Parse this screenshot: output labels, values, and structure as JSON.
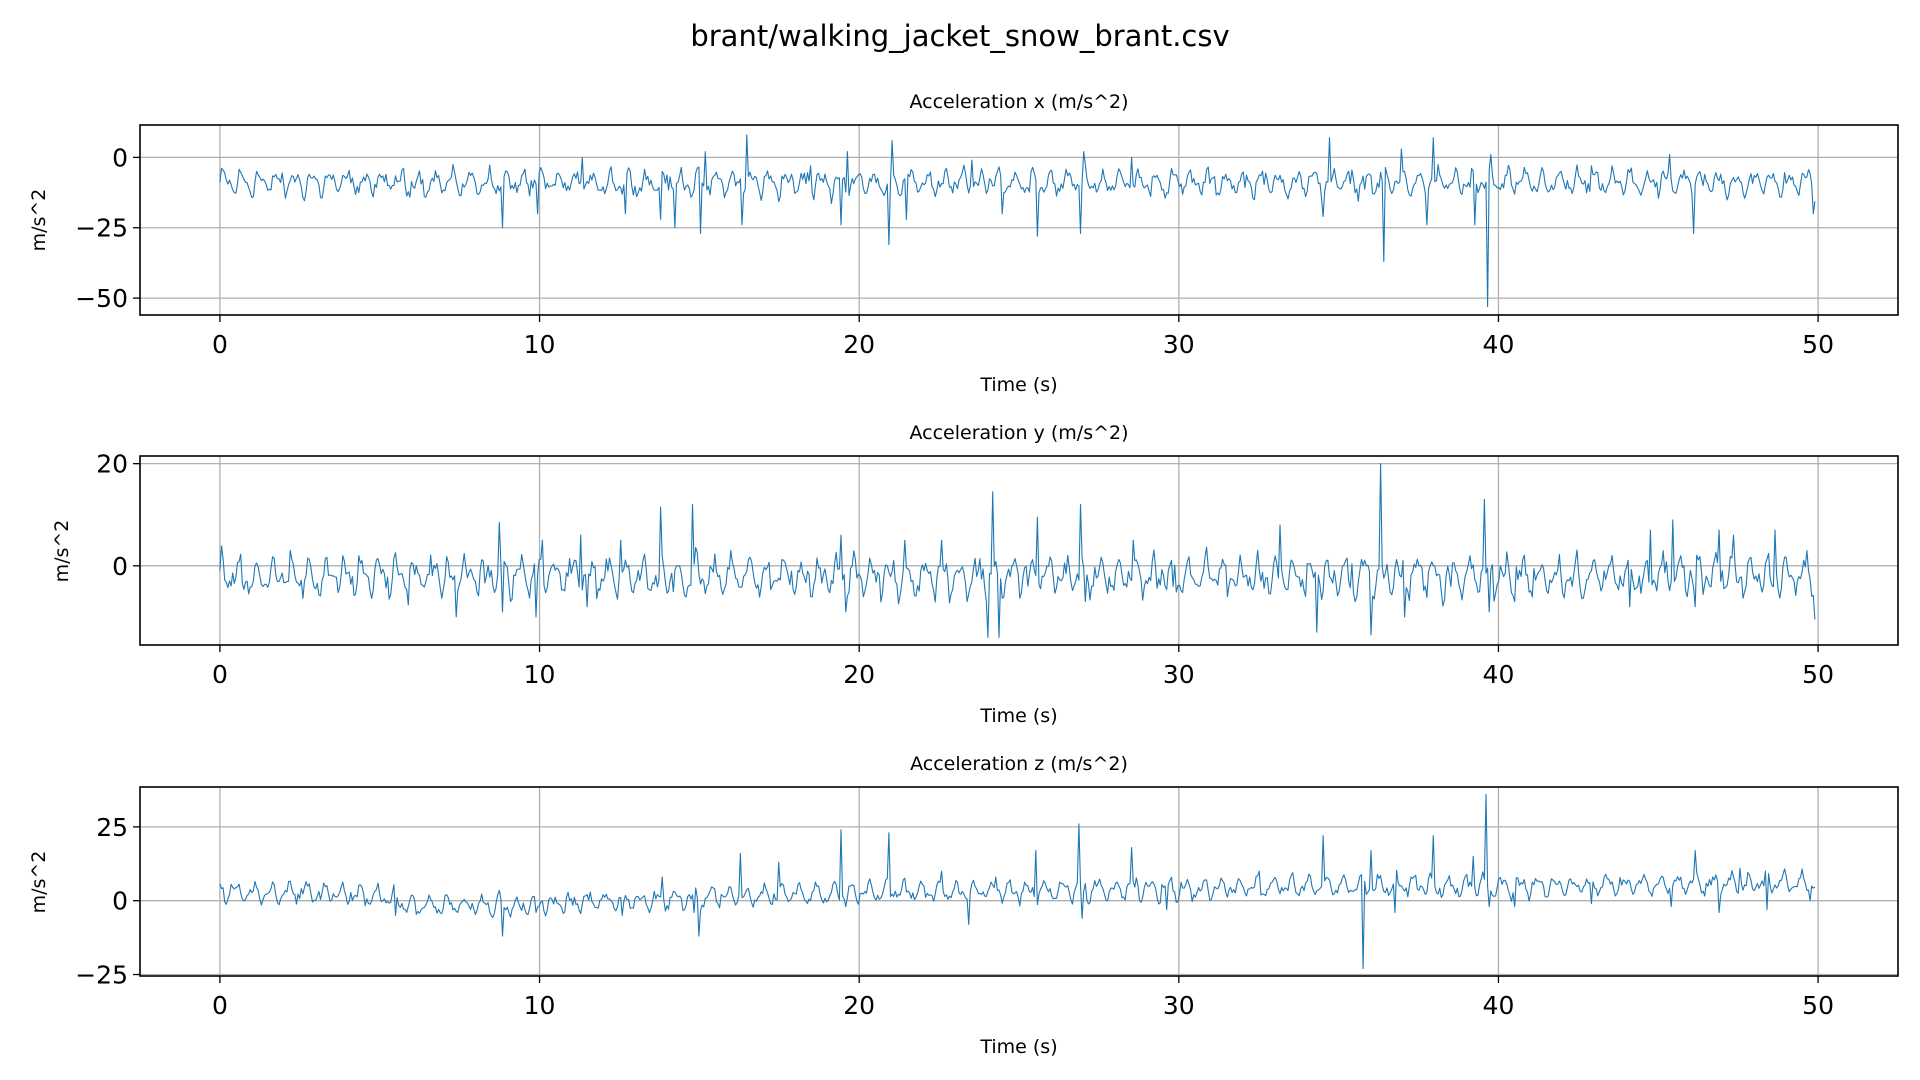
{
  "figure": {
    "suptitle": "brant/walking_jacket_snow_brant.csv"
  },
  "colors": {
    "line": "#1f77b4",
    "grid": "#b0b0b0",
    "axes": "#000000",
    "background": "#ffffff"
  },
  "chart_data": [
    {
      "type": "line",
      "title": "Acceleration x (m/s^2)",
      "xlabel": "Time (s)",
      "ylabel": "m/s^2",
      "xlim": [
        -2.5,
        52.5
      ],
      "ylim": [
        -56,
        11.5
      ],
      "xticks": [
        0,
        10,
        20,
        30,
        40,
        50
      ],
      "xtick_labels": [
        "0",
        "10",
        "20",
        "30",
        "40",
        "50"
      ],
      "yticks": [
        0,
        -25,
        -50
      ],
      "ytick_labels": [
        "0",
        "−25",
        "−50"
      ],
      "grid": true,
      "series": [
        {
          "x_range": [
            0,
            49.9
          ],
          "samples": 1000,
          "baseline": -9,
          "wave_amplitude": 3,
          "noise": 2.5,
          "spikes": [
            [
              8.85,
              -25
            ],
            [
              9.95,
              -20
            ],
            [
              11.35,
              0
            ],
            [
              12.7,
              -20
            ],
            [
              13.8,
              -22
            ],
            [
              14.25,
              -25
            ],
            [
              15.05,
              -27
            ],
            [
              15.2,
              2
            ],
            [
              16.35,
              -24
            ],
            [
              16.5,
              8
            ],
            [
              18.5,
              -3
            ],
            [
              19.45,
              -24
            ],
            [
              19.65,
              2
            ],
            [
              20.95,
              -31
            ],
            [
              21.05,
              6
            ],
            [
              21.5,
              -22
            ],
            [
              23.55,
              -1
            ],
            [
              24.5,
              -20
            ],
            [
              25.55,
              -28
            ],
            [
              26.9,
              -27
            ],
            [
              27,
              2
            ],
            [
              28.5,
              0
            ],
            [
              33.7,
              -7
            ],
            [
              34.5,
              -21
            ],
            [
              34.7,
              7
            ],
            [
              36.4,
              -37
            ],
            [
              36.95,
              3
            ],
            [
              37.75,
              -24
            ],
            [
              37.95,
              7
            ],
            [
              39.25,
              -24
            ],
            [
              39.65,
              -53
            ],
            [
              39.75,
              1
            ],
            [
              42.9,
              -3
            ],
            [
              45.35,
              1
            ],
            [
              46.1,
              -27
            ],
            [
              49.85,
              -20
            ]
          ]
        }
      ]
    },
    {
      "type": "line",
      "title": "Acceleration y (m/s^2)",
      "xlabel": "Time (s)",
      "ylabel": "m/s^2",
      "xlim": [
        -2.5,
        52.5
      ],
      "ylim": [
        -15.5,
        21.5
      ],
      "xticks": [
        0,
        10,
        20,
        30,
        40,
        50
      ],
      "xtick_labels": [
        "0",
        "10",
        "20",
        "30",
        "40",
        "50"
      ],
      "yticks": [
        20,
        0
      ],
      "ytick_labels": [
        "20",
        "0"
      ],
      "grid": true,
      "series": [
        {
          "x_range": [
            0,
            49.9
          ],
          "samples": 1000,
          "baseline": -2,
          "wave_amplitude": 2.5,
          "noise": 2.2,
          "spikes": [
            [
              7.4,
              -10
            ],
            [
              8.75,
              8.5
            ],
            [
              8.85,
              -9
            ],
            [
              9.9,
              -10
            ],
            [
              10.1,
              5
            ],
            [
              11.3,
              6
            ],
            [
              11.5,
              -8
            ],
            [
              12.55,
              5
            ],
            [
              13.8,
              11.5
            ],
            [
              14.8,
              12
            ],
            [
              18.5,
              -6
            ],
            [
              19.45,
              6
            ],
            [
              19.6,
              -9
            ],
            [
              21.45,
              5
            ],
            [
              22.6,
              5
            ],
            [
              23.4,
              -7
            ],
            [
              24.05,
              -14
            ],
            [
              24.2,
              14.5
            ],
            [
              24.4,
              -14
            ],
            [
              25.55,
              9.5
            ],
            [
              26.9,
              12
            ],
            [
              27.05,
              -7
            ],
            [
              28.55,
              5
            ],
            [
              29.8,
              -4
            ],
            [
              31.5,
              -6
            ],
            [
              33.15,
              8
            ],
            [
              34.3,
              -13
            ],
            [
              35.5,
              -7
            ],
            [
              36,
              -13.5
            ],
            [
              36.3,
              20
            ],
            [
              37.05,
              -10
            ],
            [
              38.5,
              -4
            ],
            [
              39.55,
              13
            ],
            [
              39.7,
              -9
            ],
            [
              40.5,
              -7
            ],
            [
              44.1,
              -8
            ],
            [
              44.75,
              7
            ],
            [
              45.45,
              9
            ],
            [
              46.15,
              -8
            ],
            [
              46.9,
              7
            ],
            [
              47.35,
              6
            ],
            [
              48.65,
              7
            ],
            [
              49.65,
              3
            ],
            [
              49.9,
              -10.5
            ]
          ]
        }
      ]
    },
    {
      "type": "line",
      "title": "Acceleration z (m/s^2)",
      "xlabel": "Time (s)",
      "ylabel": "m/s^2",
      "xlim": [
        -2.5,
        52.5
      ],
      "ylim": [
        -25.5,
        38.5
      ],
      "xticks": [
        0,
        10,
        20,
        30,
        40,
        50
      ],
      "xtick_labels": [
        "0",
        "10",
        "20",
        "30",
        "40",
        "50"
      ],
      "yticks": [
        25,
        0,
        -25
      ],
      "ytick_labels": [
        "25",
        "0",
        "−25"
      ],
      "grid": true,
      "series": [
        {
          "x_range": [
            0,
            49.9
          ],
          "samples": 1000,
          "baseline_points": [
            [
              0,
              3
            ],
            [
              5,
              2
            ],
            [
              6,
              -2
            ],
            [
              10,
              -1
            ],
            [
              15,
              1
            ],
            [
              20,
              3
            ],
            [
              25,
              3
            ],
            [
              30,
              4
            ],
            [
              35,
              5
            ],
            [
              40,
              5
            ],
            [
              49.9,
              6
            ]
          ],
          "wave_amplitude": 2.5,
          "noise": 1.8,
          "spikes": [
            [
              5.5,
              -5
            ],
            [
              8.85,
              -12
            ],
            [
              9.9,
              -4
            ],
            [
              12.6,
              -5
            ],
            [
              13.85,
              8
            ],
            [
              14.85,
              -4
            ],
            [
              15,
              -12
            ],
            [
              16.3,
              16
            ],
            [
              17.5,
              13
            ],
            [
              19.45,
              24
            ],
            [
              19.6,
              -2
            ],
            [
              20.95,
              23
            ],
            [
              21.4,
              7
            ],
            [
              22.6,
              10
            ],
            [
              23.45,
              -8
            ],
            [
              24.3,
              8
            ],
            [
              25.5,
              17
            ],
            [
              26.85,
              26
            ],
            [
              26.95,
              -6
            ],
            [
              28.5,
              18
            ],
            [
              29.6,
              -3
            ],
            [
              32.5,
              10
            ],
            [
              34.5,
              22
            ],
            [
              34.7,
              7
            ],
            [
              35.75,
              -23
            ],
            [
              36,
              17
            ],
            [
              36.75,
              -4
            ],
            [
              37.95,
              22
            ],
            [
              39.2,
              15
            ],
            [
              39.6,
              36
            ],
            [
              39.7,
              -2
            ],
            [
              40.5,
              -2
            ],
            [
              42.9,
              -1
            ],
            [
              45.4,
              -2
            ],
            [
              46.15,
              17
            ],
            [
              46.9,
              -4
            ],
            [
              47.55,
              11
            ],
            [
              48.4,
              -3
            ],
            [
              49.75,
              0
            ]
          ]
        }
      ]
    }
  ]
}
